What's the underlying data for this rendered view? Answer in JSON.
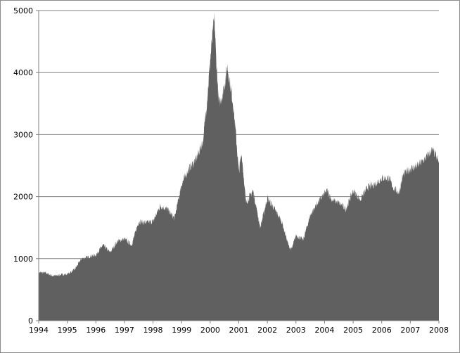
{
  "chart_data": {
    "type": "area",
    "title": "",
    "xlabel": "",
    "ylabel": "",
    "xlim": [
      1994,
      2008
    ],
    "ylim": [
      0,
      5000
    ],
    "x_ticks": [
      "1994",
      "1995",
      "1996",
      "1997",
      "1998",
      "1999",
      "2000",
      "2001",
      "2002",
      "2003",
      "2004",
      "2005",
      "2006",
      "2007",
      "2008"
    ],
    "y_ticks": [
      "0",
      "1000",
      "2000",
      "3000",
      "4000",
      "5000"
    ],
    "grid": "horizontal",
    "legend": "none",
    "colors": {
      "fill": "#606060",
      "grid": "#808080",
      "axis": "#808080"
    },
    "series": [
      {
        "x": [
          1994.0,
          1994.25,
          1994.5,
          1994.75,
          1995.0,
          1995.25,
          1995.5,
          1995.75,
          1996.0,
          1996.25,
          1996.5,
          1996.75,
          1997.0,
          1997.25,
          1997.5,
          1997.75,
          1998.0,
          1998.25,
          1998.5,
          1998.75,
          1999.0,
          1999.25,
          1999.5,
          1999.75,
          1999.9,
          2000.0,
          2000.1,
          2000.15,
          2000.2,
          2000.3,
          2000.4,
          2000.5,
          2000.6,
          2000.7,
          2000.8,
          2000.9,
          2001.0,
          2001.1,
          2001.25,
          2001.5,
          2001.75,
          2002.0,
          2002.25,
          2002.5,
          2002.75,
          2002.85,
          2003.0,
          2003.25,
          2003.5,
          2003.75,
          2004.0,
          2004.1,
          2004.25,
          2004.5,
          2004.75,
          2005.0,
          2005.25,
          2005.5,
          2005.75,
          2006.0,
          2006.25,
          2006.4,
          2006.6,
          2006.75,
          2007.0,
          2007.25,
          2007.5,
          2007.75,
          2007.85,
          2008.0
        ],
        "values": [
          780,
          770,
          720,
          740,
          750,
          820,
          1000,
          1030,
          1060,
          1220,
          1100,
          1280,
          1320,
          1220,
          1600,
          1580,
          1600,
          1850,
          1800,
          1650,
          2200,
          2450,
          2600,
          2900,
          3600,
          4200,
          4700,
          4860,
          4300,
          3500,
          3600,
          3800,
          4100,
          3800,
          3500,
          3000,
          2400,
          2700,
          1900,
          2100,
          1500,
          1980,
          1800,
          1600,
          1200,
          1150,
          1380,
          1300,
          1700,
          1900,
          2050,
          2100,
          1950,
          1900,
          1800,
          2100,
          1950,
          2150,
          2200,
          2300,
          2300,
          2150,
          2060,
          2350,
          2450,
          2500,
          2600,
          2750,
          2700,
          2550
        ]
      }
    ]
  }
}
